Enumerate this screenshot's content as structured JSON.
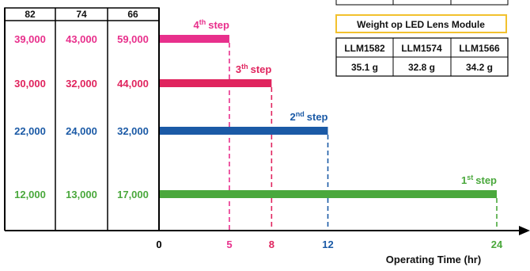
{
  "chart_data": {
    "type": "bar",
    "orientation": "horizontal",
    "title": "",
    "xlabel": "Operating Time (hr)",
    "ylabel": "",
    "xlim": [
      0,
      24
    ],
    "x_ticks": [
      "0",
      "5",
      "8",
      "12",
      "24"
    ],
    "grid": false,
    "legend": "none",
    "left_table": {
      "headers": [
        "82",
        "74",
        "66"
      ],
      "rows": [
        [
          "39,000",
          "43,000",
          "59,000"
        ],
        [
          "30,000",
          "32,000",
          "44,000"
        ],
        [
          "22,000",
          "24,000",
          "32,000"
        ],
        [
          "12,000",
          "13,000",
          "17,000"
        ]
      ]
    },
    "steps": [
      {
        "label_num": "4",
        "label_sup": "th",
        "label_word": "step",
        "end": 5,
        "color": "#e8308c"
      },
      {
        "label_num": "3",
        "label_sup": "th",
        "label_word": "step",
        "end": 8,
        "color": "#e0245e"
      },
      {
        "label_num": "2",
        "label_sup": "nd",
        "label_word": "step",
        "end": 12,
        "color": "#1b5aa6"
      },
      {
        "label_num": "1",
        "label_sup": "st",
        "label_word": "step",
        "end": 24,
        "color": "#4aa83c"
      }
    ],
    "tick_colors": {
      "0": "#000000",
      "5": "#e8308c",
      "8": "#e0245e",
      "12": "#1b5aa6",
      "24": "#4aa83c"
    }
  },
  "weight_table": {
    "title": "Weight op LED Lens Module",
    "border_color": "#f2c12e",
    "headers": [
      "LLM1582",
      "LLM1574",
      "LLM1566"
    ],
    "values": [
      "35.1 g",
      "32.8 g",
      "34.2 g"
    ]
  }
}
